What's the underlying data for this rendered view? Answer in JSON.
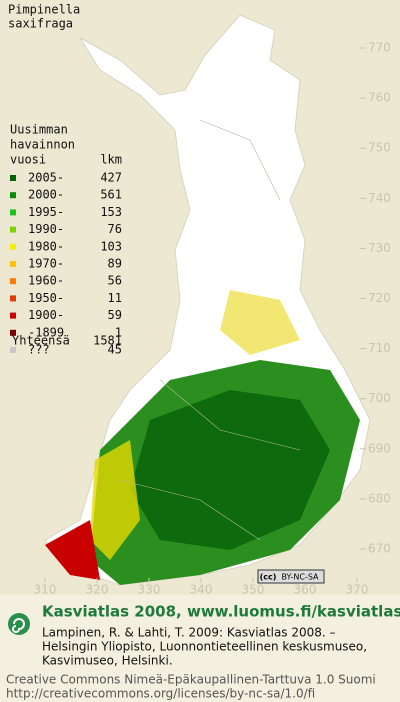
{
  "title": [
    "Pimpinella",
    "saxifraga"
  ],
  "legend": {
    "heading": [
      "Uusimman",
      "havainnon",
      "vuosi"
    ],
    "count_heading": "lkm",
    "rows": [
      {
        "label": "2005-",
        "count": 427,
        "color": "#006400"
      },
      {
        "label": "2000-",
        "count": 561,
        "color": "#0a8a0a"
      },
      {
        "label": "1995-",
        "count": 153,
        "color": "#1fc21f"
      },
      {
        "label": "1990-",
        "count": 76,
        "color": "#7ad400"
      },
      {
        "label": "1980-",
        "count": 103,
        "color": "#f0f000"
      },
      {
        "label": "1970-",
        "count": 89,
        "color": "#ffc400"
      },
      {
        "label": "1960-",
        "count": 56,
        "color": "#ff7a00"
      },
      {
        "label": "1950-",
        "count": 11,
        "color": "#e03c00"
      },
      {
        "label": "1900-",
        "count": 59,
        "color": "#c80000"
      },
      {
        "label": "-1899",
        "count": 1,
        "color": "#7a0000"
      },
      {
        "label": "???",
        "count": 45,
        "color": "#c8c8c8"
      }
    ],
    "total": {
      "label": "Yhteensä",
      "count": 1581
    }
  },
  "grid": {
    "northing": [
      770,
      760,
      750,
      740,
      730,
      720,
      710,
      700,
      690,
      680,
      670
    ],
    "easting": [
      310,
      320,
      330,
      340,
      350,
      360,
      370
    ]
  },
  "license_badge": [
    "(cc)",
    "BY-NC-SA"
  ],
  "footer": {
    "site": "Kasviatlas 2008, www.luomus.fi/kasviatlas",
    "citation": [
      "Lampinen, R. & Lahti, T. 2009: Kasviatlas 2008. –",
      "Helsingin Yliopisto, Luonnontieteellinen keskusmuseo,",
      "Kasvimuseo, Helsinki."
    ],
    "license": [
      "Creative Commons Nimeä-Epäkaupallinen-Tarttuva 1.0 Suomi",
      "http://creativecommons.org/licenses/by-nc-sa/1.0/fi"
    ]
  }
}
